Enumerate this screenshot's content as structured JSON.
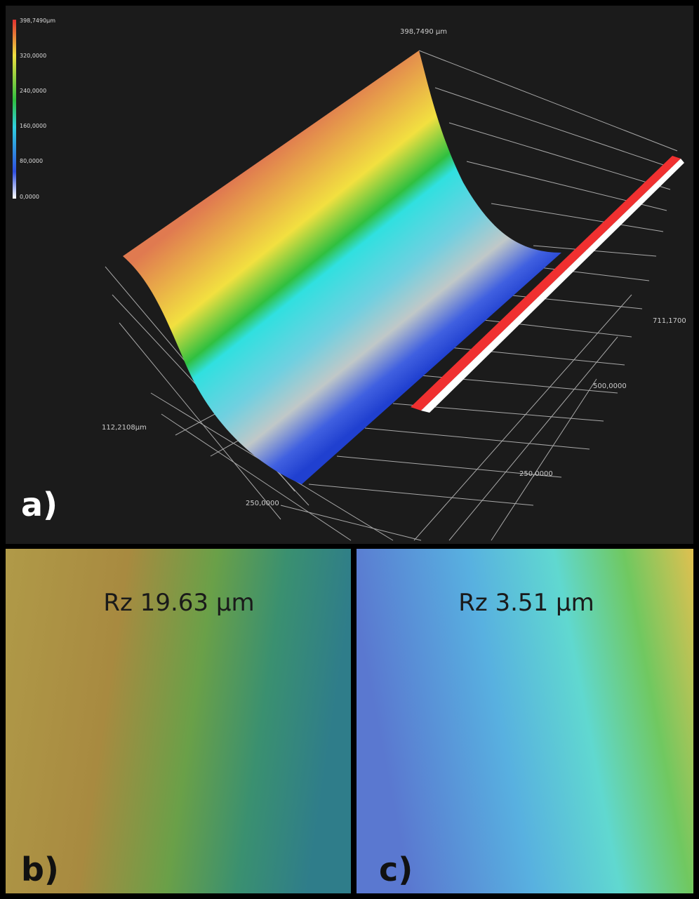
{
  "panel_a": {
    "label": "a)",
    "colorbar_labels": [
      "398,7490µm",
      "320,0000",
      "240,0000",
      "160,0000",
      "80,0000",
      "0,0000"
    ],
    "axis_labels": {
      "z_top": "398,7490 µm",
      "y_left": "112,2108µm",
      "x_bottom": "250,0000",
      "right_1": "250,0000",
      "right_2": "500,0000",
      "right_3": "711,1700"
    }
  },
  "panel_b": {
    "label": "b)",
    "caption": "Rz 19.63 µm"
  },
  "panel_c": {
    "label": "c)",
    "caption": "Rz 3.51 µm"
  }
}
